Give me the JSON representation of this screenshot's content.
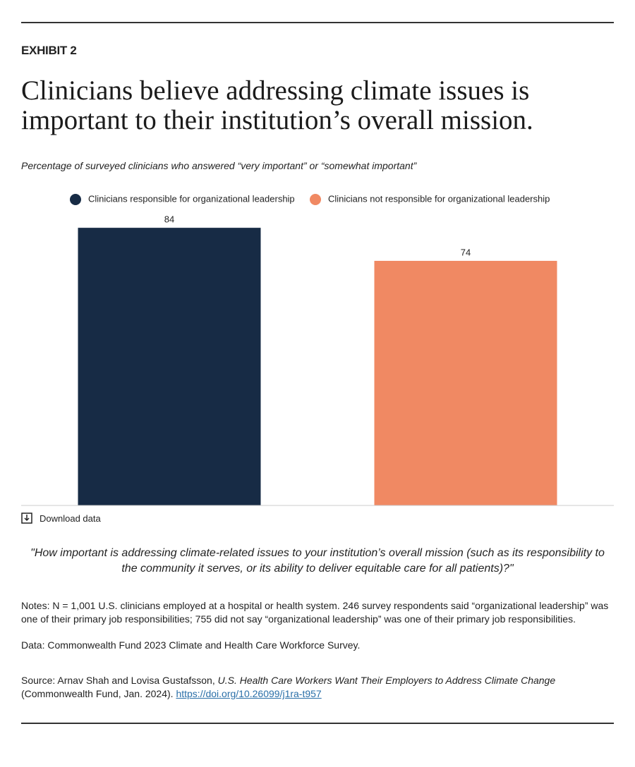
{
  "exhibit": "EXHIBIT 2",
  "chart_data": {
    "type": "bar",
    "title": "Clinicians believe addressing climate issues is important to their institution’s overall mission.",
    "subtitle": "Percentage of surveyed clinicians who answered “very important” or “somewhat important”",
    "categories": [
      null
    ],
    "series": [
      {
        "name": "Clinicians responsible for organizational leadership",
        "color": "#172b45",
        "values": [
          84
        ]
      },
      {
        "name": "Clinicians not responsible for organizational leadership",
        "color": "#f08963",
        "values": [
          74
        ]
      }
    ],
    "ylim": [
      0,
      90
    ],
    "grid": false
  },
  "download": "Download data",
  "question": "\"How important is addressing climate-related issues to your institution’s overall mission (such as its responsibility to the community it serves, or its ability to deliver equitable care for all patients)?\"",
  "notes": "Notes: N = 1,001 U.S. clinicians employed at a hospital or health system. 246 survey respondents said “organizational leadership” was one of their primary job responsibilities; 755 did not say “organizational leadership” was one of their primary job responsibilities.",
  "data_source": "Data: Commonwealth Fund 2023 Climate and Health Care Workforce Survey.",
  "source": {
    "prefix": "Source: Arnav Shah and Lovisa Gustafsson, ",
    "title": "U.S. Health Care Workers Want Their Employers to Address Climate Change",
    "suffix": " (Commonwealth Fund, Jan. 2024). ",
    "link": "https://doi.org/10.26099/j1ra-t957"
  }
}
